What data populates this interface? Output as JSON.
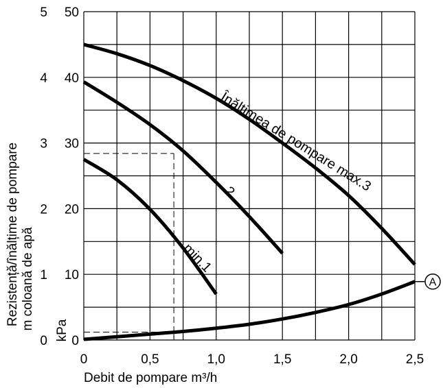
{
  "chart_data": {
    "type": "line",
    "xlabel": "Debit de pompare m³/h",
    "ylabel_line1": "Rezistență/înălțime de pompare",
    "ylabel_line2": "m coloană de apă",
    "ylabel_unit": "kPa",
    "xlim": [
      0,
      2.5
    ],
    "ylim_m": [
      0,
      5
    ],
    "ylim_kpa": [
      0,
      50
    ],
    "x_ticks": [
      "0",
      "0,5",
      "1,0",
      "1,5",
      "2,0",
      "2,5"
    ],
    "y_ticks_m": [
      "0",
      "1",
      "2",
      "3",
      "4",
      "5"
    ],
    "y_ticks_kpa": [
      "0",
      "10",
      "20",
      "30",
      "40",
      "50"
    ],
    "grid": true,
    "series": [
      {
        "name": "Înălțimea de pompare max.3",
        "x": [
          0,
          0.25,
          0.5,
          0.75,
          1.0,
          1.25,
          1.5,
          1.75,
          2.0,
          2.25,
          2.5
        ],
        "y": [
          45.0,
          43.6,
          41.8,
          39.5,
          36.8,
          33.6,
          30.0,
          26.2,
          22.0,
          17.0,
          11.5
        ]
      },
      {
        "name": "2",
        "x": [
          0,
          0.25,
          0.5,
          0.75,
          1.0,
          1.25,
          1.5
        ],
        "y": [
          39.3,
          36.2,
          32.8,
          28.8,
          24.0,
          18.8,
          13.2
        ]
      },
      {
        "name": "min.1",
        "x": [
          0,
          0.25,
          0.5,
          0.75,
          1.0
        ],
        "y": [
          27.5,
          24.4,
          19.9,
          14.0,
          7.0
        ]
      },
      {
        "name": "A",
        "x": [
          0,
          0.25,
          0.5,
          0.75,
          1.0,
          1.25,
          1.5,
          1.75,
          2.0,
          2.25,
          2.5
        ],
        "y": [
          0.1,
          0.5,
          0.9,
          1.3,
          1.8,
          2.4,
          3.2,
          4.2,
          5.4,
          7.0,
          8.9
        ]
      }
    ],
    "reading_lines": [
      {
        "x": 0.68,
        "y": 28.4
      },
      {
        "x": 0.68,
        "y": 1.2
      }
    ],
    "annotations": {
      "curve_max3": "Înălțimea de pompare max.3",
      "curve_2": "2",
      "curve_min1": "min.1",
      "marker_a": "A"
    }
  }
}
